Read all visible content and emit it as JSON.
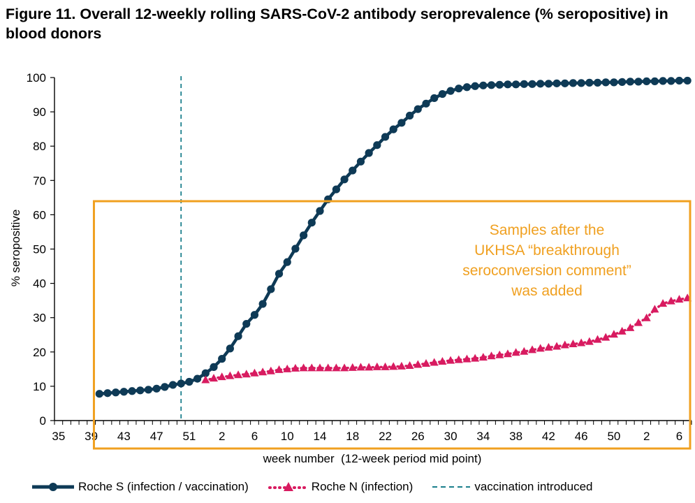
{
  "title": "Figure 11. Overall 12-weekly rolling SARS-CoV-2 antibody seroprevalence (% seropositive) in blood donors",
  "chart_data": {
    "type": "line",
    "xlabel": "week number  (12-week period mid point)",
    "ylabel": "% seropositive",
    "ylim": [
      0,
      100
    ],
    "yticks": [
      0,
      10,
      20,
      30,
      40,
      50,
      60,
      70,
      80,
      90,
      100
    ],
    "x_tick_labels": [
      "35",
      "39",
      "43",
      "47",
      "51",
      "2",
      "6",
      "10",
      "14",
      "18",
      "22",
      "26",
      "30",
      "34",
      "38",
      "42",
      "46",
      "50",
      "2",
      "6"
    ],
    "x": [
      "35",
      "36",
      "37",
      "38",
      "39",
      "40",
      "41",
      "42",
      "43",
      "44",
      "45",
      "46",
      "47",
      "48",
      "49",
      "50",
      "51",
      "52",
      "53",
      "1",
      "2",
      "3",
      "4",
      "5",
      "6",
      "7",
      "8",
      "9",
      "10",
      "11",
      "12",
      "13",
      "14",
      "15",
      "16",
      "17",
      "18",
      "19",
      "20",
      "21",
      "22",
      "23",
      "24",
      "25",
      "26",
      "27",
      "28",
      "29",
      "30",
      "31",
      "32",
      "33",
      "34",
      "35",
      "36",
      "37",
      "38",
      "39",
      "40",
      "41",
      "42",
      "43",
      "44",
      "45",
      "46",
      "47",
      "48",
      "49",
      "50",
      "51",
      "52",
      "1",
      "2",
      "3",
      "4",
      "5",
      "6",
      "7"
    ],
    "grid": false,
    "legend_position": "bottom",
    "series": [
      {
        "name": "Roche S (infection / vaccination)",
        "color": "#0e3a56",
        "marker": "circle",
        "values": [
          null,
          null,
          null,
          null,
          null,
          7.8,
          8.0,
          8.2,
          8.4,
          8.6,
          8.8,
          9.0,
          9.3,
          9.8,
          10.4,
          10.8,
          11.3,
          12.2,
          13.8,
          15.6,
          18.0,
          21.0,
          24.6,
          28.2,
          30.8,
          34.0,
          38.3,
          42.8,
          46.2,
          50.1,
          54.0,
          57.7,
          61.1,
          64.5,
          67.4,
          70.3,
          72.9,
          75.5,
          78.0,
          80.3,
          82.7,
          84.9,
          86.8,
          88.9,
          90.8,
          92.4,
          94.0,
          95.2,
          96.1,
          96.8,
          97.2,
          97.5,
          97.7,
          97.8,
          97.9,
          98.0,
          98.0,
          98.1,
          98.1,
          98.2,
          98.2,
          98.3,
          98.3,
          98.4,
          98.4,
          98.5,
          98.5,
          98.6,
          98.6,
          98.7,
          98.8,
          98.8,
          98.9,
          98.9,
          99.0,
          99.0,
          99.1,
          99.1
        ]
      },
      {
        "name": "Roche N (infection)",
        "color": "#d81b60",
        "marker": "triangle",
        "values": [
          null,
          null,
          null,
          null,
          null,
          null,
          null,
          null,
          null,
          null,
          null,
          null,
          null,
          null,
          null,
          null,
          null,
          null,
          11.8,
          12.3,
          12.7,
          13.0,
          13.3,
          13.5,
          13.8,
          14.1,
          14.4,
          14.8,
          15.0,
          15.2,
          15.3,
          15.3,
          15.3,
          15.3,
          15.3,
          15.3,
          15.4,
          15.5,
          15.5,
          15.6,
          15.6,
          15.7,
          15.8,
          16.0,
          16.3,
          16.6,
          16.9,
          17.2,
          17.5,
          17.7,
          17.9,
          18.1,
          18.4,
          18.8,
          19.1,
          19.4,
          19.8,
          20.1,
          20.6,
          21.0,
          21.3,
          21.6,
          22.0,
          22.3,
          22.6,
          23.0,
          23.6,
          24.2,
          25.1,
          26.0,
          27.0,
          28.5,
          29.9,
          32.4,
          34.1,
          34.8,
          35.3,
          35.7
        ]
      },
      {
        "name": "vaccination introduced",
        "color": "#1a7f8c",
        "style": "dashed",
        "x_at": "50"
      }
    ],
    "annotations": [
      {
        "text_lines": [
          "Samples after the",
          "UKHSA “breakthrough",
          "seroconversion comment”",
          "was added"
        ],
        "color": "#f0a020",
        "box_from_x": "40"
      }
    ]
  },
  "legend": {
    "s_label": "Roche S (infection / vaccination)",
    "n_label": "Roche N (infection)",
    "v_label": "vaccination introduced"
  }
}
